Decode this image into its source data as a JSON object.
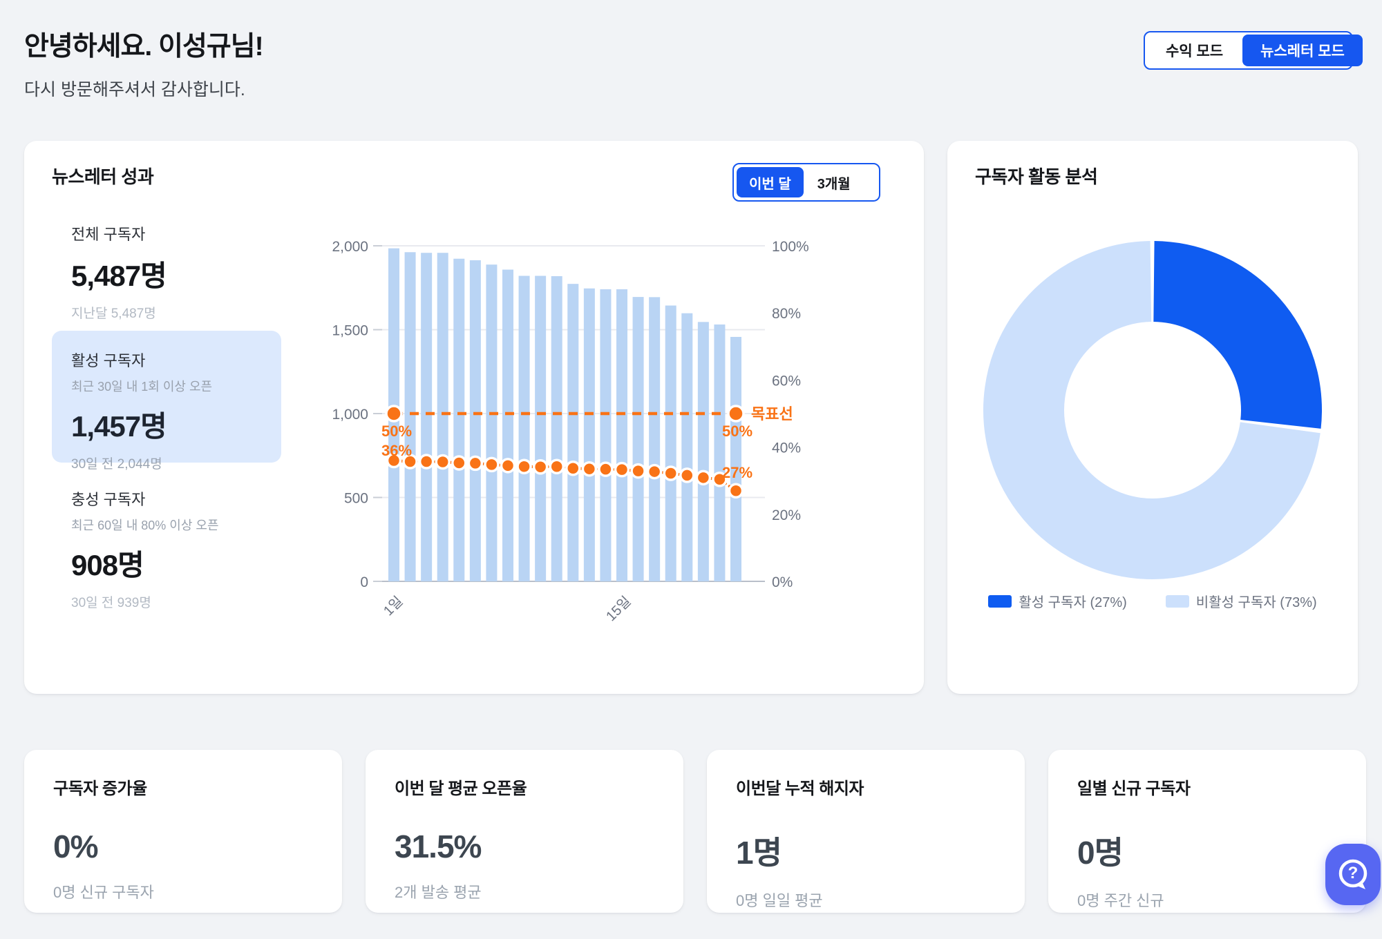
{
  "header": {
    "title": "안녕하세요. 이성규님!",
    "subtitle": "다시 방문해주셔서 감사합니다."
  },
  "mode_toggle": {
    "options": [
      {
        "label": "수익 모드",
        "active": false
      },
      {
        "label": "뉴스레터 모드",
        "active": true
      }
    ]
  },
  "performance_card": {
    "title": "뉴스레터 성과",
    "period_tabs": [
      {
        "label": "이번 달",
        "active": true
      },
      {
        "label": "3개월",
        "active": false
      }
    ],
    "stats": [
      {
        "label": "전체 구독자",
        "value": "5,487명",
        "sub": "지난달 5,487명"
      },
      {
        "label": "활성 구독자",
        "desc": "최근 30일 내 1회 이상 오픈",
        "value": "1,457명",
        "sub": "30일 전 2,044명"
      },
      {
        "label": "충성 구독자",
        "desc": "최근 60일 내 80% 이상 오픈",
        "value": "908명",
        "sub": "30일 전 939명"
      }
    ]
  },
  "activity_card": {
    "title": "구독자 활동 분석"
  },
  "summary_cards": [
    {
      "title": "구독자 증가율",
      "value": "0%",
      "sub": "0명 신규 구독자"
    },
    {
      "title": "이번 달 평균 오픈율",
      "value": "31.5%",
      "sub": "2개 발송 평균"
    },
    {
      "title": "이번달 누적 해지자",
      "value": "1명",
      "sub": "0명 일일 평균"
    },
    {
      "title": "일별 신규 구독자",
      "value": "0명",
      "sub": "0명 주간 신규"
    }
  ],
  "colors": {
    "accent_blue": "#1657f0",
    "bar_blue": "#b9d4f4",
    "orange": "#f97316",
    "donut_blue": "#0f5cf1",
    "donut_light": "#cce0fc",
    "grid": "#e8eaef",
    "axis_line": "#b9bfc9",
    "axis_text": "#6b7280"
  },
  "chart_data": [
    {
      "type": "bar",
      "note": "daily subscribers (bars, left axis) + open rate (dotted line, right axis) + target line at 50%",
      "bars": {
        "name": "구독자 수",
        "color": "#b9d4f4",
        "values": [
          1985,
          1962,
          1958,
          1958,
          1923,
          1914,
          1888,
          1858,
          1821,
          1821,
          1819,
          1773,
          1746,
          1741,
          1741,
          1695,
          1694,
          1644,
          1598,
          1546,
          1531,
          1457
        ]
      },
      "line": {
        "name": "오픈율(%)",
        "color": "#f97316",
        "values": [
          36,
          35.7,
          35.7,
          35.6,
          35.3,
          35.2,
          34.8,
          34.5,
          34.2,
          34.1,
          34.2,
          33.7,
          33.5,
          33.4,
          33.3,
          32.9,
          32.7,
          32.2,
          31.6,
          30.9,
          30.4,
          27
        ],
        "first_point_label": "36%",
        "last_point_label": "27%"
      },
      "target_line": {
        "label": "목표선",
        "value_pct": 50,
        "start_label": "50%",
        "end_label": "50%",
        "color": "#f97316"
      },
      "left_axis": {
        "min": 0,
        "max": 2000,
        "ticks": [
          {
            "v": 2000,
            "label": "2,000"
          },
          {
            "v": 1500,
            "label": "1,500"
          },
          {
            "v": 1000,
            "label": "1,000"
          },
          {
            "v": 500,
            "label": "500"
          },
          {
            "v": 0,
            "label": "0"
          }
        ]
      },
      "right_axis": {
        "min": 0,
        "max": 100,
        "ticks": [
          {
            "v": 100,
            "label": "100%"
          },
          {
            "v": 80,
            "label": "80%"
          },
          {
            "v": 60,
            "label": "60%"
          },
          {
            "v": 40,
            "label": "40%"
          },
          {
            "v": 20,
            "label": "20%"
          },
          {
            "v": 0,
            "label": "0%"
          }
        ]
      },
      "x_ticks": [
        {
          "index": 0,
          "label": "1일"
        },
        {
          "index": 14,
          "label": "15일"
        }
      ]
    },
    {
      "type": "pie",
      "title": "구독자 활동 분석",
      "donut": true,
      "slices": [
        {
          "label": "활성 구독자 (27%)",
          "value": 27,
          "color": "#0f5cf1"
        },
        {
          "label": "비활성 구독자 (73%)",
          "value": 73,
          "color": "#cce0fc"
        }
      ],
      "legend_position": "bottom"
    }
  ]
}
